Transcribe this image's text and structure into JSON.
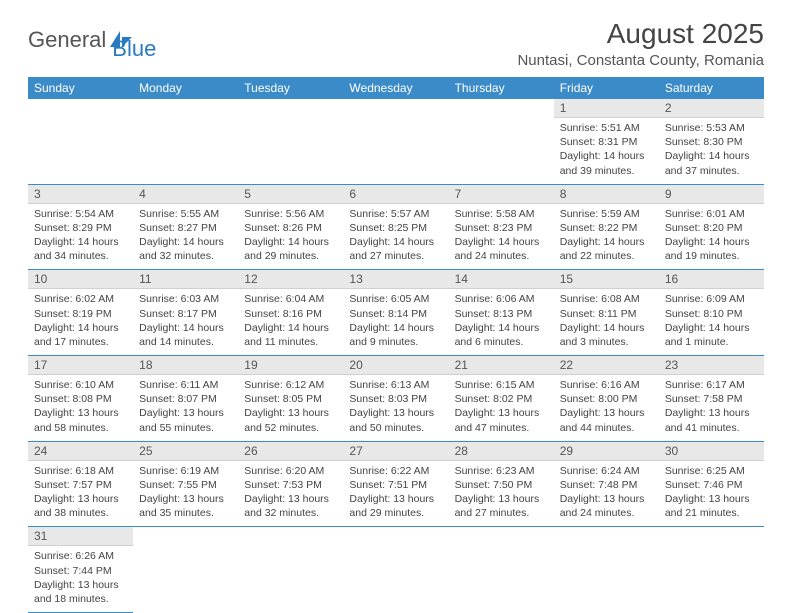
{
  "brand": {
    "name1": "General",
    "name2": "Blue"
  },
  "title": "August 2025",
  "location": "Nuntasi, Constanta County, Romania",
  "colors": {
    "header_bg": "#3b8bc9",
    "daynum_bg": "#e8e8e8",
    "rule": "#3b8bc9",
    "text": "#444"
  },
  "weekdays": [
    "Sunday",
    "Monday",
    "Tuesday",
    "Wednesday",
    "Thursday",
    "Friday",
    "Saturday"
  ],
  "weeks": [
    [
      null,
      null,
      null,
      null,
      null,
      {
        "n": "1",
        "sr": "5:51 AM",
        "ss": "8:31 PM",
        "dl": "14 hours and 39 minutes."
      },
      {
        "n": "2",
        "sr": "5:53 AM",
        "ss": "8:30 PM",
        "dl": "14 hours and 37 minutes."
      }
    ],
    [
      {
        "n": "3",
        "sr": "5:54 AM",
        "ss": "8:29 PM",
        "dl": "14 hours and 34 minutes."
      },
      {
        "n": "4",
        "sr": "5:55 AM",
        "ss": "8:27 PM",
        "dl": "14 hours and 32 minutes."
      },
      {
        "n": "5",
        "sr": "5:56 AM",
        "ss": "8:26 PM",
        "dl": "14 hours and 29 minutes."
      },
      {
        "n": "6",
        "sr": "5:57 AM",
        "ss": "8:25 PM",
        "dl": "14 hours and 27 minutes."
      },
      {
        "n": "7",
        "sr": "5:58 AM",
        "ss": "8:23 PM",
        "dl": "14 hours and 24 minutes."
      },
      {
        "n": "8",
        "sr": "5:59 AM",
        "ss": "8:22 PM",
        "dl": "14 hours and 22 minutes."
      },
      {
        "n": "9",
        "sr": "6:01 AM",
        "ss": "8:20 PM",
        "dl": "14 hours and 19 minutes."
      }
    ],
    [
      {
        "n": "10",
        "sr": "6:02 AM",
        "ss": "8:19 PM",
        "dl": "14 hours and 17 minutes."
      },
      {
        "n": "11",
        "sr": "6:03 AM",
        "ss": "8:17 PM",
        "dl": "14 hours and 14 minutes."
      },
      {
        "n": "12",
        "sr": "6:04 AM",
        "ss": "8:16 PM",
        "dl": "14 hours and 11 minutes."
      },
      {
        "n": "13",
        "sr": "6:05 AM",
        "ss": "8:14 PM",
        "dl": "14 hours and 9 minutes."
      },
      {
        "n": "14",
        "sr": "6:06 AM",
        "ss": "8:13 PM",
        "dl": "14 hours and 6 minutes."
      },
      {
        "n": "15",
        "sr": "6:08 AM",
        "ss": "8:11 PM",
        "dl": "14 hours and 3 minutes."
      },
      {
        "n": "16",
        "sr": "6:09 AM",
        "ss": "8:10 PM",
        "dl": "14 hours and 1 minute."
      }
    ],
    [
      {
        "n": "17",
        "sr": "6:10 AM",
        "ss": "8:08 PM",
        "dl": "13 hours and 58 minutes."
      },
      {
        "n": "18",
        "sr": "6:11 AM",
        "ss": "8:07 PM",
        "dl": "13 hours and 55 minutes."
      },
      {
        "n": "19",
        "sr": "6:12 AM",
        "ss": "8:05 PM",
        "dl": "13 hours and 52 minutes."
      },
      {
        "n": "20",
        "sr": "6:13 AM",
        "ss": "8:03 PM",
        "dl": "13 hours and 50 minutes."
      },
      {
        "n": "21",
        "sr": "6:15 AM",
        "ss": "8:02 PM",
        "dl": "13 hours and 47 minutes."
      },
      {
        "n": "22",
        "sr": "6:16 AM",
        "ss": "8:00 PM",
        "dl": "13 hours and 44 minutes."
      },
      {
        "n": "23",
        "sr": "6:17 AM",
        "ss": "7:58 PM",
        "dl": "13 hours and 41 minutes."
      }
    ],
    [
      {
        "n": "24",
        "sr": "6:18 AM",
        "ss": "7:57 PM",
        "dl": "13 hours and 38 minutes."
      },
      {
        "n": "25",
        "sr": "6:19 AM",
        "ss": "7:55 PM",
        "dl": "13 hours and 35 minutes."
      },
      {
        "n": "26",
        "sr": "6:20 AM",
        "ss": "7:53 PM",
        "dl": "13 hours and 32 minutes."
      },
      {
        "n": "27",
        "sr": "6:22 AM",
        "ss": "7:51 PM",
        "dl": "13 hours and 29 minutes."
      },
      {
        "n": "28",
        "sr": "6:23 AM",
        "ss": "7:50 PM",
        "dl": "13 hours and 27 minutes."
      },
      {
        "n": "29",
        "sr": "6:24 AM",
        "ss": "7:48 PM",
        "dl": "13 hours and 24 minutes."
      },
      {
        "n": "30",
        "sr": "6:25 AM",
        "ss": "7:46 PM",
        "dl": "13 hours and 21 minutes."
      }
    ],
    [
      {
        "n": "31",
        "sr": "6:26 AM",
        "ss": "7:44 PM",
        "dl": "13 hours and 18 minutes."
      },
      null,
      null,
      null,
      null,
      null,
      null
    ]
  ],
  "labels": {
    "sunrise": "Sunrise: ",
    "sunset": "Sunset: ",
    "daylight": "Daylight: "
  }
}
